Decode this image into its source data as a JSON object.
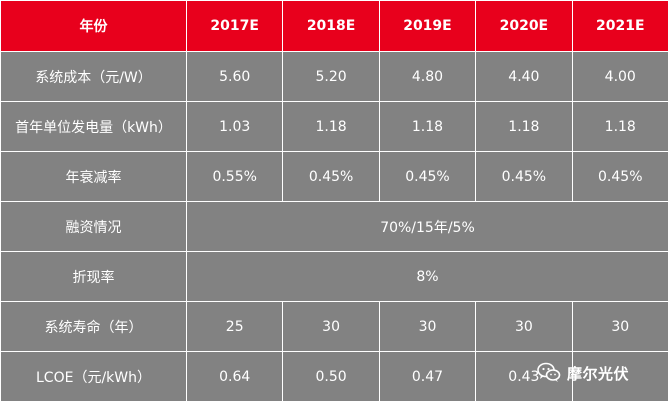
{
  "header": [
    "年份",
    "2017E",
    "2018E",
    "2019E",
    "2020E",
    "2021E"
  ],
  "rows": [
    {
      "label": "系统成本（元/W）",
      "values": [
        "5.60",
        "5.20",
        "4.80",
        "4.40",
        "4.00"
      ]
    },
    {
      "label": "首年单位发电量（kWh）",
      "values": [
        "1.03",
        "1.18",
        "1.18",
        "1.18",
        "1.18"
      ]
    },
    {
      "label": "年衰减率",
      "values": [
        "0.55%",
        "0.45%",
        "0.45%",
        "0.45%",
        "0.45%"
      ]
    },
    {
      "label": "融资情况",
      "merged": "70%/15年/5%"
    },
    {
      "label": "折现率",
      "merged": "8%"
    },
    {
      "label": "系统寿命（年）",
      "values": [
        "25",
        "30",
        "30",
        "30",
        "30"
      ]
    },
    {
      "label": "LCOE（元/kWh）",
      "values": [
        "0.64",
        "0.50",
        "0.47",
        "0.43",
        ""
      ]
    }
  ],
  "watermark": {
    "text": "摩尔光伏",
    "icon": "wechat-icon"
  }
}
